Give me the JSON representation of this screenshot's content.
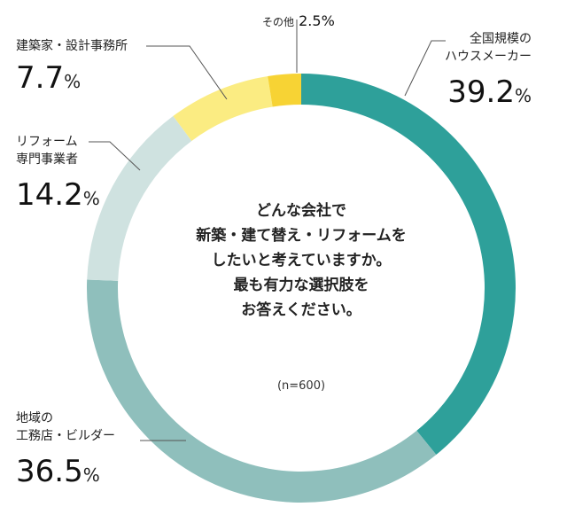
{
  "question": {
    "lines": [
      "どんな会社で",
      "新築・建て替え・リフォームを",
      "したいと考えていますか。",
      "最も有力な選択肢を",
      "お答えください。"
    ],
    "sample": "(n=600)"
  },
  "chart_data": {
    "type": "pie",
    "donut": true,
    "start": "12 o'clock",
    "direction": "clockwise",
    "slices": [
      {
        "label": "全国規模のハウスメーカー",
        "label_lines": [
          "全国規模の",
          "ハウスメーカー"
        ],
        "value": 39.2,
        "color": "#2ea09a"
      },
      {
        "label": "地域の工務店・ビルダー",
        "label_lines": [
          "地域の",
          "工務店・ビルダー"
        ],
        "value": 36.5,
        "color": "#8fbfbc"
      },
      {
        "label": "リフォーム専門事業者",
        "label_lines": [
          "リフォーム",
          "専門事業者"
        ],
        "value": 14.2,
        "color": "#cfe2e0"
      },
      {
        "label": "建築家・設計事務所",
        "label_lines": [
          "建築家・設計事務所"
        ],
        "value": 7.7,
        "color": "#fbec82"
      },
      {
        "label": "その他",
        "label_lines": [
          "その他"
        ],
        "value": 2.5,
        "color": "#f7d334"
      }
    ],
    "unit": "%"
  }
}
